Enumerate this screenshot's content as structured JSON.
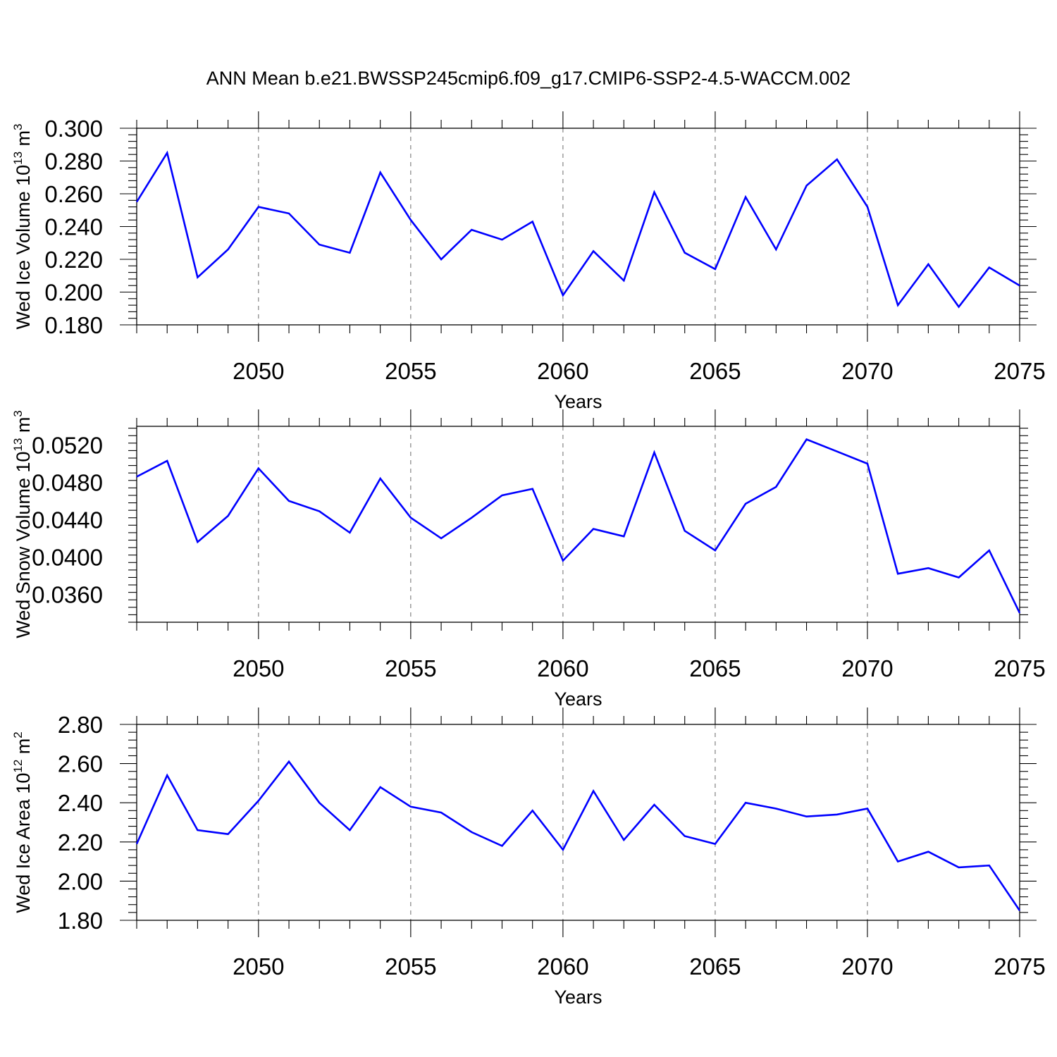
{
  "title": "ANN Mean b.e21.BWSSP245cmip6.f09_g17.CMIP6-SSP2-4.5-WACCM.002",
  "colors": {
    "series": "#0000ff",
    "axes": "#000000",
    "grid": "#777777"
  },
  "chart_data": [
    {
      "type": "line",
      "ylabel": {
        "base": "Wed Ice Volume 10",
        "exp": "13",
        "unit": " m",
        "unit_exp": "3"
      },
      "xlabel": "Years",
      "xlim": [
        2046,
        2075
      ],
      "ylim": [
        0.18,
        0.3
      ],
      "y_ticks": [
        "0.180",
        "0.200",
        "0.220",
        "0.240",
        "0.260",
        "0.280",
        "0.300"
      ],
      "x_ticks": [
        "2050",
        "2055",
        "2060",
        "2065",
        "2070",
        "2075"
      ],
      "grid": "vertical dashed at labeled years",
      "x": [
        2046,
        2047,
        2048,
        2049,
        2050,
        2051,
        2052,
        2053,
        2054,
        2055,
        2056,
        2057,
        2058,
        2059,
        2060,
        2061,
        2062,
        2063,
        2064,
        2065,
        2066,
        2067,
        2068,
        2069,
        2070,
        2071,
        2072,
        2073,
        2074,
        2075
      ],
      "values": [
        0.255,
        0.285,
        0.209,
        0.226,
        0.252,
        0.248,
        0.229,
        0.224,
        0.273,
        0.244,
        0.22,
        0.238,
        0.232,
        0.243,
        0.198,
        0.225,
        0.207,
        0.261,
        0.224,
        0.214,
        0.258,
        0.226,
        0.265,
        0.281,
        0.252,
        0.192,
        0.217,
        0.191,
        0.215,
        0.204
      ]
    },
    {
      "type": "line",
      "ylabel": {
        "base": "Wed Snow Volume 10",
        "exp": "13",
        "unit": " m",
        "unit_exp": "3"
      },
      "xlabel": "Years",
      "xlim": [
        2046,
        2075
      ],
      "ylim": [
        0.033,
        0.054
      ],
      "y_ticks": [
        "0.0360",
        "0.0400",
        "0.0440",
        "0.0480",
        "0.0520"
      ],
      "x_ticks": [
        "2050",
        "2055",
        "2060",
        "2065",
        "2070",
        "2075"
      ],
      "grid": "vertical dashed at labeled years",
      "x": [
        2046,
        2047,
        2048,
        2049,
        2050,
        2051,
        2052,
        2053,
        2054,
        2055,
        2056,
        2057,
        2058,
        2059,
        2060,
        2061,
        2062,
        2063,
        2064,
        2065,
        2066,
        2067,
        2068,
        2069,
        2070,
        2071,
        2072,
        2073,
        2074,
        2075
      ],
      "values": [
        0.0486,
        0.0503,
        0.0416,
        0.0444,
        0.0495,
        0.046,
        0.0449,
        0.0426,
        0.0484,
        0.0442,
        0.042,
        0.0442,
        0.0466,
        0.0473,
        0.0396,
        0.043,
        0.0422,
        0.0512,
        0.0428,
        0.0407,
        0.0457,
        0.0475,
        0.0526,
        0.0513,
        0.05,
        0.0382,
        0.0388,
        0.0378,
        0.0407,
        0.034
      ]
    },
    {
      "type": "line",
      "ylabel": {
        "base": "Wed Ice Area 10",
        "exp": "12",
        "unit": " m",
        "unit_exp": "2"
      },
      "xlabel": "Years",
      "xlim": [
        2046,
        2075
      ],
      "ylim": [
        1.8,
        2.8
      ],
      "y_ticks": [
        "1.80",
        "2.00",
        "2.20",
        "2.40",
        "2.60",
        "2.80"
      ],
      "x_ticks": [
        "2050",
        "2055",
        "2060",
        "2065",
        "2070",
        "2075"
      ],
      "grid": "vertical dashed at labeled years",
      "x": [
        2046,
        2047,
        2048,
        2049,
        2050,
        2051,
        2052,
        2053,
        2054,
        2055,
        2056,
        2057,
        2058,
        2059,
        2060,
        2061,
        2062,
        2063,
        2064,
        2065,
        2066,
        2067,
        2068,
        2069,
        2070,
        2071,
        2072,
        2073,
        2074,
        2075
      ],
      "values": [
        2.19,
        2.54,
        2.26,
        2.24,
        2.41,
        2.61,
        2.4,
        2.26,
        2.48,
        2.38,
        2.35,
        2.25,
        2.18,
        2.36,
        2.16,
        2.46,
        2.21,
        2.39,
        2.23,
        2.19,
        2.4,
        2.37,
        2.33,
        2.34,
        2.37,
        2.1,
        2.15,
        2.07,
        2.08,
        1.85
      ]
    }
  ]
}
